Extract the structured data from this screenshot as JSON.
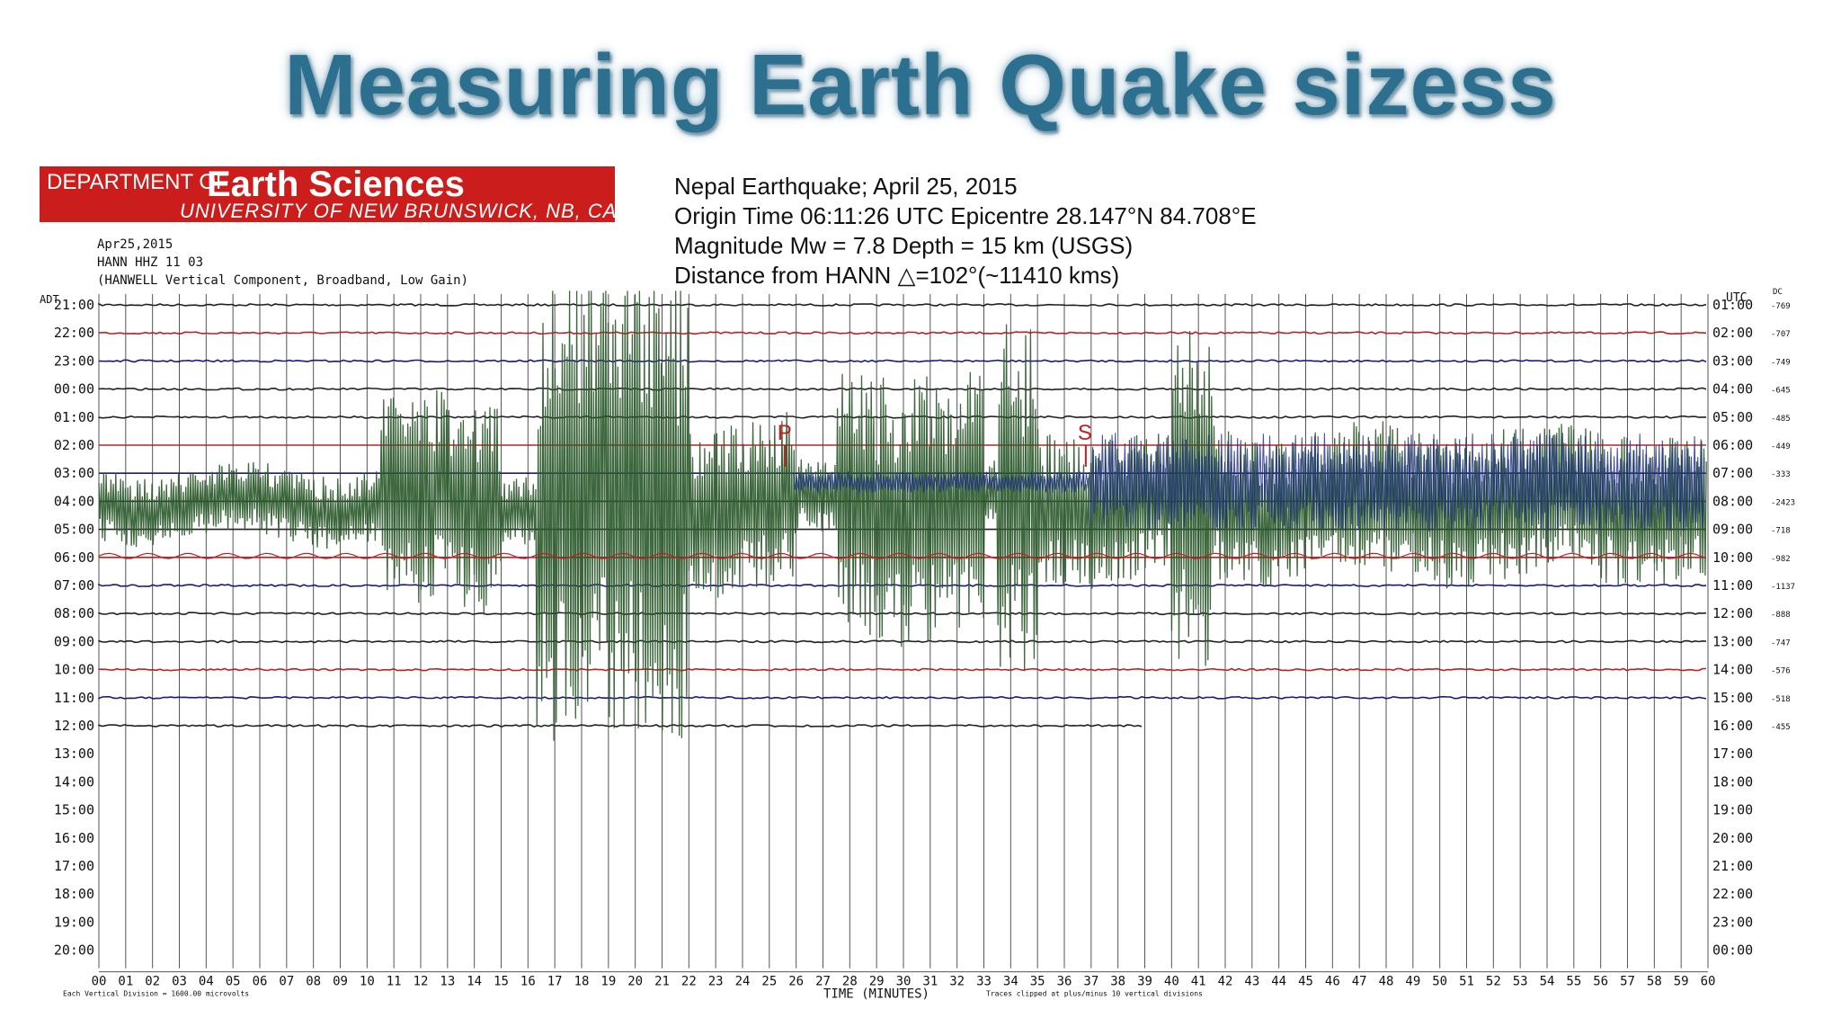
{
  "slide": {
    "title": "Measuring Earth Quake sizess"
  },
  "banner": {
    "department": "DEPARTMENT OF",
    "name": "Earth Sciences",
    "university": "UNIVERSITY OF NEW BRUNSWICK, NB, CANADA"
  },
  "station_info": {
    "date": "Apr25,2015",
    "channel": "HANN HHZ 11 03",
    "description": "(HANWELL Vertical Component, Broadband, Low Gain)"
  },
  "event_info": {
    "line1": "Nepal Earthquake; April 25, 2015",
    "line2": "Origin Time 06:11:26 UTC Epicentre 28.147°N 84.708°E",
    "line3": "Magnitude Mw = 7.8 Depth = 15 km (USGS)",
    "line4": "Distance from HANN △=102°(~11410 kms)"
  },
  "chart_data": {
    "type": "line",
    "title": "",
    "left_axis_label": "ADT",
    "right_axis_label": "UTC",
    "far_right_label": "DC",
    "left_hours": [
      "21:00",
      "22:00",
      "23:00",
      "00:00",
      "01:00",
      "02:00",
      "03:00",
      "04:00",
      "05:00",
      "06:00",
      "07:00",
      "08:00",
      "09:00",
      "10:00",
      "11:00",
      "12:00",
      "13:00",
      "14:00",
      "15:00",
      "16:00",
      "17:00",
      "18:00",
      "19:00",
      "20:00"
    ],
    "right_hours": [
      "01:00",
      "02:00",
      "03:00",
      "04:00",
      "05:00",
      "06:00",
      "07:00",
      "08:00",
      "09:00",
      "10:00",
      "11:00",
      "12:00",
      "13:00",
      "14:00",
      "15:00",
      "16:00",
      "17:00",
      "18:00",
      "19:00",
      "20:00",
      "21:00",
      "22:00",
      "23:00",
      "00:00"
    ],
    "dc_offsets": [
      "-769",
      "-707",
      "-749",
      "-645",
      "-485",
      "-449",
      "-333",
      "-2423",
      "-718",
      "-982",
      "-1137",
      "-888",
      "-747",
      "-576",
      "-518",
      "-455"
    ],
    "x_ticks": [
      "00",
      "01",
      "02",
      "03",
      "04",
      "05",
      "06",
      "07",
      "08",
      "09",
      "10",
      "11",
      "12",
      "13",
      "14",
      "15",
      "16",
      "17",
      "18",
      "19",
      "20",
      "21",
      "22",
      "23",
      "24",
      "25",
      "26",
      "27",
      "28",
      "29",
      "30",
      "31",
      "32",
      "33",
      "34",
      "35",
      "36",
      "37",
      "38",
      "39",
      "40",
      "41",
      "42",
      "43",
      "44",
      "45",
      "46",
      "47",
      "48",
      "49",
      "50",
      "51",
      "52",
      "53",
      "54",
      "55",
      "56",
      "57",
      "58",
      "59",
      "60"
    ],
    "xlabel": "TIME (MINUTES)",
    "footnote_left": "Each Vertical Division = 1600.00 microvolts",
    "footnote_right": "Traces clipped at plus/minus 10 vertical divisions",
    "phase_markers": [
      {
        "label": "P",
        "minute": 25.6,
        "trace_hour_utc": "06:00"
      },
      {
        "label": "S",
        "minute": 36.8,
        "trace_hour_utc": "06:00"
      }
    ],
    "recorded_traces": 16,
    "last_trace_end_minute": 39,
    "line_colors": [
      "#222222",
      "#c02020",
      "#1a1a7a",
      "#222222"
    ],
    "event_color": "#2c5a2c",
    "blue_trace_color": "#1c2c8a"
  }
}
